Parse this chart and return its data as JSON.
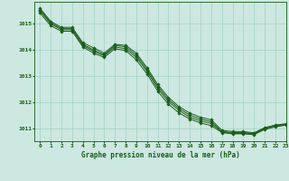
{
  "title": "Graphe pression niveau de la mer (hPa)",
  "xlim": [
    -0.5,
    23
  ],
  "ylim": [
    1010.5,
    1015.85
  ],
  "yticks": [
    1011,
    1012,
    1013,
    1014,
    1015
  ],
  "xticks": [
    0,
    1,
    2,
    3,
    4,
    5,
    6,
    7,
    8,
    9,
    10,
    11,
    12,
    13,
    14,
    15,
    16,
    17,
    18,
    19,
    20,
    21,
    22,
    23
  ],
  "bg_color": "#cce8e0",
  "line_color": "#1a5c1a",
  "grid_color": "#99ccbb",
  "series": [
    [
      1015.6,
      1015.1,
      1014.87,
      1014.87,
      1014.28,
      1014.08,
      1013.88,
      1014.22,
      1014.18,
      1013.88,
      1013.32,
      1012.68,
      1012.18,
      1011.82,
      1011.58,
      1011.42,
      1011.32,
      1010.92,
      1010.87,
      1010.87,
      1010.82,
      1011.02,
      1011.12,
      1011.17
    ],
    [
      1015.55,
      1015.05,
      1014.82,
      1014.82,
      1014.22,
      1014.0,
      1013.82,
      1014.18,
      1014.12,
      1013.8,
      1013.25,
      1012.6,
      1012.1,
      1011.75,
      1011.5,
      1011.35,
      1011.25,
      1010.87,
      1010.83,
      1010.83,
      1010.8,
      1011.0,
      1011.1,
      1011.15
    ],
    [
      1015.5,
      1015.0,
      1014.78,
      1014.78,
      1014.18,
      1013.95,
      1013.78,
      1014.12,
      1014.05,
      1013.72,
      1013.18,
      1012.52,
      1012.02,
      1011.68,
      1011.42,
      1011.28,
      1011.18,
      1010.85,
      1010.8,
      1010.8,
      1010.78,
      1010.98,
      1011.08,
      1011.12
    ],
    [
      1015.42,
      1014.93,
      1014.72,
      1014.72,
      1014.12,
      1013.88,
      1013.72,
      1014.05,
      1013.98,
      1013.62,
      1013.08,
      1012.42,
      1011.92,
      1011.58,
      1011.35,
      1011.2,
      1011.1,
      1010.83,
      1010.78,
      1010.78,
      1010.75,
      1010.95,
      1011.05,
      1011.12
    ]
  ]
}
